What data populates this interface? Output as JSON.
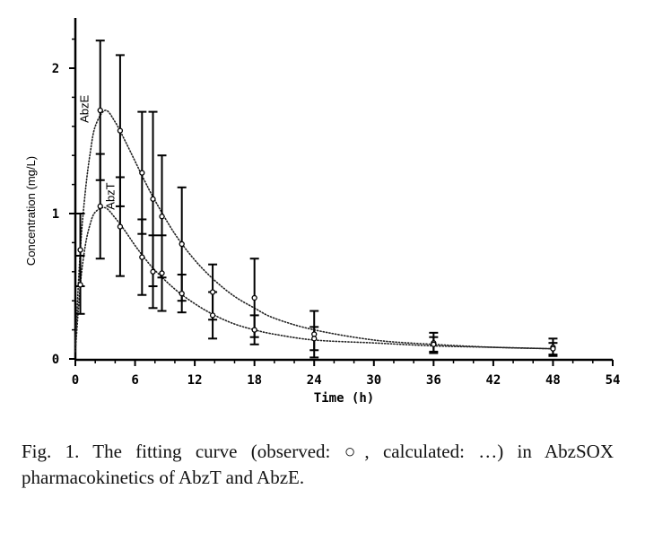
{
  "chart_data": {
    "type": "scatter",
    "ylabel": "Concentration (mg/L)",
    "xlabel": "Time (h)",
    "xlim": [
      0,
      54
    ],
    "ylim": [
      0,
      2.4
    ],
    "xticks": [
      0,
      6,
      12,
      18,
      24,
      30,
      36,
      42,
      48,
      54
    ],
    "yticks": [
      0,
      1,
      2
    ],
    "series": [
      {
        "name": "AbzE",
        "observed": [
          {
            "x": 0.5,
            "y": 0.75,
            "yerr": 0.25
          },
          {
            "x": 2.5,
            "y": 1.71,
            "yerr": 0.48
          },
          {
            "x": 4.5,
            "y": 1.57,
            "yerr": 0.52
          },
          {
            "x": 6.7,
            "y": 1.28,
            "yerr": 0.42
          },
          {
            "x": 7.8,
            "y": 1.1,
            "yerr": 0.6
          },
          {
            "x": 8.7,
            "y": 0.98,
            "yerr": 0.42
          },
          {
            "x": 10.7,
            "y": 0.79,
            "yerr": 0.39
          },
          {
            "x": 13.8,
            "y": 0.46,
            "yerr": 0.19
          },
          {
            "x": 18.0,
            "y": 0.42,
            "yerr": 0.27
          },
          {
            "x": 24.0,
            "y": 0.17,
            "yerr": 0.16
          },
          {
            "x": 36.0,
            "y": 0.11,
            "yerr": 0.07
          },
          {
            "x": 48.0,
            "y": 0.08,
            "yerr": 0.06
          }
        ],
        "calculated": [
          {
            "x": 0,
            "y": 0.1
          },
          {
            "x": 0.5,
            "y": 0.75
          },
          {
            "x": 1,
            "y": 1.15
          },
          {
            "x": 1.5,
            "y": 1.42
          },
          {
            "x": 2,
            "y": 1.6
          },
          {
            "x": 3,
            "y": 1.71
          },
          {
            "x": 4,
            "y": 1.63
          },
          {
            "x": 5,
            "y": 1.5
          },
          {
            "x": 6,
            "y": 1.36
          },
          {
            "x": 7,
            "y": 1.22
          },
          {
            "x": 8,
            "y": 1.09
          },
          {
            "x": 10,
            "y": 0.86
          },
          {
            "x": 12,
            "y": 0.68
          },
          {
            "x": 14,
            "y": 0.54
          },
          {
            "x": 16,
            "y": 0.43
          },
          {
            "x": 18,
            "y": 0.35
          },
          {
            "x": 20,
            "y": 0.28
          },
          {
            "x": 24,
            "y": 0.2
          },
          {
            "x": 30,
            "y": 0.13
          },
          {
            "x": 36,
            "y": 0.1
          },
          {
            "x": 42,
            "y": 0.08
          },
          {
            "x": 48,
            "y": 0.07
          }
        ]
      },
      {
        "name": "AbzT",
        "observed": [
          {
            "x": 0.5,
            "y": 0.51,
            "yerr": 0.2
          },
          {
            "x": 2.5,
            "y": 1.05,
            "yerr": 0.36
          },
          {
            "x": 4.5,
            "y": 0.91,
            "yerr": 0.34
          },
          {
            "x": 6.7,
            "y": 0.7,
            "yerr": 0.26
          },
          {
            "x": 7.8,
            "y": 0.6,
            "yerr": 0.25
          },
          {
            "x": 8.7,
            "y": 0.59,
            "yerr": 0.26
          },
          {
            "x": 10.7,
            "y": 0.45,
            "yerr": 0.13
          },
          {
            "x": 13.8,
            "y": 0.3,
            "yerr": 0.16
          },
          {
            "x": 18.0,
            "y": 0.2,
            "yerr": 0.1
          },
          {
            "x": 24.0,
            "y": 0.14,
            "yerr": 0.08
          },
          {
            "x": 36.0,
            "y": 0.1,
            "yerr": 0.05
          },
          {
            "x": 48.0,
            "y": 0.07,
            "yerr": 0.04
          }
        ],
        "calculated": [
          {
            "x": 0,
            "y": 0.05
          },
          {
            "x": 0.5,
            "y": 0.51
          },
          {
            "x": 1,
            "y": 0.78
          },
          {
            "x": 1.5,
            "y": 0.93
          },
          {
            "x": 2,
            "y": 1.01
          },
          {
            "x": 3,
            "y": 1.04
          },
          {
            "x": 4,
            "y": 0.97
          },
          {
            "x": 5,
            "y": 0.88
          },
          {
            "x": 6,
            "y": 0.78
          },
          {
            "x": 7,
            "y": 0.69
          },
          {
            "x": 8,
            "y": 0.61
          },
          {
            "x": 10,
            "y": 0.48
          },
          {
            "x": 12,
            "y": 0.38
          },
          {
            "x": 14,
            "y": 0.3
          },
          {
            "x": 16,
            "y": 0.24
          },
          {
            "x": 18,
            "y": 0.2
          },
          {
            "x": 20,
            "y": 0.17
          },
          {
            "x": 24,
            "y": 0.13
          },
          {
            "x": 30,
            "y": 0.11
          },
          {
            "x": 36,
            "y": 0.09
          },
          {
            "x": 42,
            "y": 0.08
          },
          {
            "x": 48,
            "y": 0.07
          }
        ]
      }
    ],
    "grid": false,
    "legend": "none"
  },
  "caption": "Fig. 1. The fitting curve (observed: ○, calculated: …) in AbzSOX pharmacokinetics of AbzT and AbzE."
}
